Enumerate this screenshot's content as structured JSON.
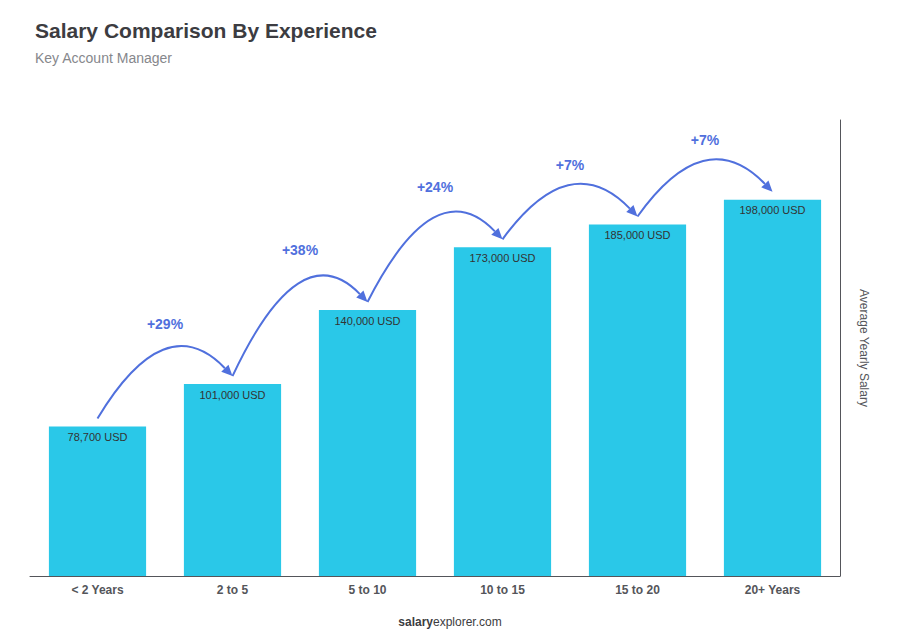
{
  "chart_data": {
    "type": "bar",
    "title": "Salary Comparison By Experience",
    "subtitle": "Key Account Manager",
    "categories": [
      "< 2 Years",
      "2 to 5",
      "5 to 10",
      "10 to 15",
      "15 to 20",
      "20+ Years"
    ],
    "values": [
      78700,
      101000,
      140000,
      173000,
      185000,
      198000
    ],
    "value_labels": [
      "78,700 USD",
      "101,000 USD",
      "140,000 USD",
      "173,000 USD",
      "185,000 USD",
      "198,000 USD"
    ],
    "data_labels": true,
    "color": "#2ac8e8",
    "ylabel": "Average Yearly Salary",
    "ylim": [
      0,
      240000
    ],
    "tick_labels": "x",
    "grid": false,
    "annotations": [
      "+29%",
      "+38%",
      "+24%",
      "+7%",
      "+7%"
    ],
    "source": [
      "salary",
      "explorer.com"
    ]
  }
}
